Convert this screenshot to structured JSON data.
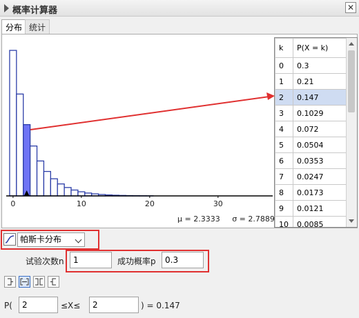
{
  "window": {
    "title": "概率计算器",
    "close_glyph": "✕"
  },
  "tabs": [
    {
      "label": "分布"
    },
    {
      "label": "统计"
    }
  ],
  "chart_data": {
    "type": "bar",
    "x": [
      0,
      1,
      2,
      3,
      4,
      5,
      6,
      7,
      8,
      9,
      10,
      11,
      12,
      13,
      14,
      15,
      16,
      17,
      18,
      19,
      20
    ],
    "values": [
      0.3,
      0.21,
      0.147,
      0.1029,
      0.072,
      0.0504,
      0.0353,
      0.0247,
      0.0173,
      0.0121,
      0.0085,
      0.0059,
      0.0042,
      0.0029,
      0.002,
      0.0014,
      0.001,
      0.0007,
      0.0005,
      0.0003,
      0.0002
    ],
    "highlight_x": 2,
    "xticks": [
      "0",
      "10",
      "20",
      "30"
    ],
    "xlim": [
      -1,
      38
    ],
    "ylim": [
      0,
      0.31
    ],
    "bar_color": "#2c3ea8",
    "highlight_color": "#6f74f5"
  },
  "stats": {
    "mean": "μ = 2.3333",
    "sd": "σ = 2.7889"
  },
  "table": {
    "headers": [
      "k",
      "P(X = k)"
    ],
    "rows": [
      {
        "k": "0",
        "p": "0.3"
      },
      {
        "k": "1",
        "p": "0.21"
      },
      {
        "k": "2",
        "p": "0.147"
      },
      {
        "k": "3",
        "p": "0.1029"
      },
      {
        "k": "4",
        "p": "0.072"
      },
      {
        "k": "5",
        "p": "0.0504"
      },
      {
        "k": "6",
        "p": "0.0353"
      },
      {
        "k": "7",
        "p": "0.0247"
      },
      {
        "k": "8",
        "p": "0.0173"
      },
      {
        "k": "9",
        "p": "0.0121"
      },
      {
        "k": "10",
        "p": "0.0085"
      }
    ],
    "selected_index": 2
  },
  "distribution": {
    "selected": "帕斯卡分布"
  },
  "params": {
    "n_label": "试验次数n",
    "n_value": "1",
    "p_label": "成功概率p",
    "p_value": "0.3"
  },
  "calc": {
    "prefix": "P(",
    "low": "2",
    "op": "≤X≤",
    "high": "2",
    "result": ") =  0.147"
  },
  "interval_buttons": [
    "left-sided",
    "interval",
    "two-tailed",
    "right-sided"
  ],
  "annotation_color": "#e03030"
}
